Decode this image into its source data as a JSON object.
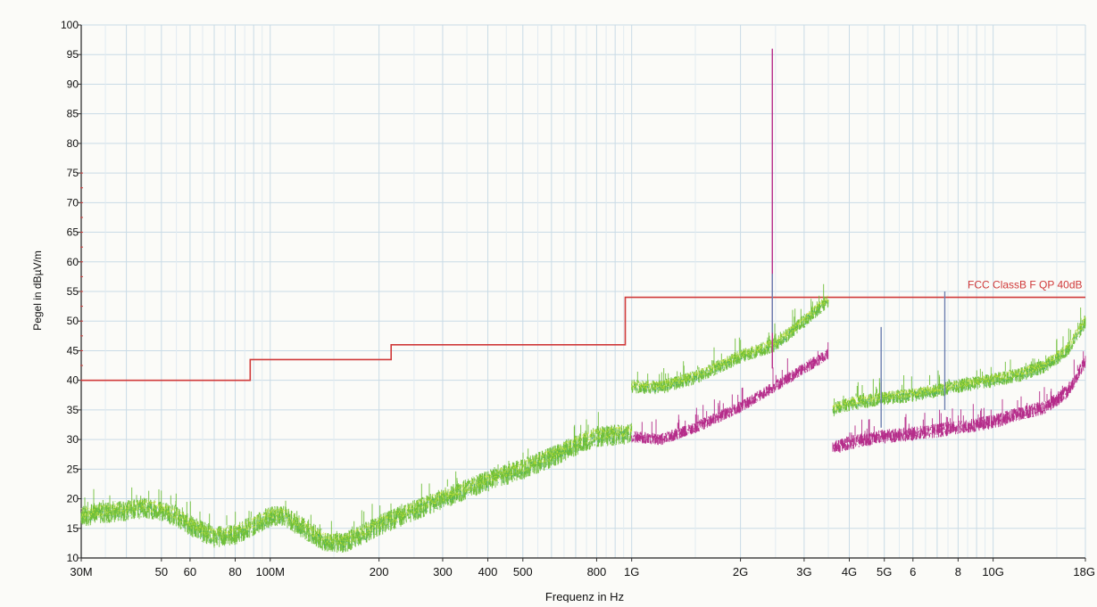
{
  "chart_data": {
    "type": "line",
    "xlabel": "Frequenz in Hz",
    "ylabel": "Pegel in dBµV/m",
    "x_scale": "log",
    "xlim_hz": [
      30000000,
      18000000000
    ],
    "ylim": [
      10,
      100
    ],
    "grid": true,
    "y_ticks": [
      10,
      15,
      20,
      25,
      30,
      35,
      40,
      45,
      50,
      55,
      60,
      65,
      70,
      75,
      80,
      85,
      90,
      95,
      100
    ],
    "x_ticks": [
      {
        "label": "30M",
        "hz": 30000000
      },
      {
        "label": "50",
        "hz": 50000000
      },
      {
        "label": "60",
        "hz": 60000000
      },
      {
        "label": "80",
        "hz": 80000000
      },
      {
        "label": "100M",
        "hz": 100000000
      },
      {
        "label": "200",
        "hz": 200000000
      },
      {
        "label": "300",
        "hz": 300000000
      },
      {
        "label": "400",
        "hz": 400000000
      },
      {
        "label": "500",
        "hz": 500000000
      },
      {
        "label": "800",
        "hz": 800000000
      },
      {
        "label": "1G",
        "hz": 1000000000
      },
      {
        "label": "2G",
        "hz": 2000000000
      },
      {
        "label": "3G",
        "hz": 3000000000
      },
      {
        "label": "4G",
        "hz": 4000000000
      },
      {
        "label": "5G",
        "hz": 5000000000
      },
      {
        "label": "6",
        "hz": 6000000000
      },
      {
        "label": "8",
        "hz": 8000000000
      },
      {
        "label": "10G",
        "hz": 10000000000
      },
      {
        "label": "18G",
        "hz": 18000000000
      }
    ],
    "series": [
      {
        "name": "FCC ClassB F QP 40dB",
        "color": "#d03a3a",
        "style": "step",
        "points": [
          [
            30000000,
            40
          ],
          [
            88000000,
            40
          ],
          [
            88000000,
            43.5
          ],
          [
            216000000,
            43.5
          ],
          [
            216000000,
            46
          ],
          [
            960000000,
            46
          ],
          [
            960000000,
            54
          ],
          [
            18000000000,
            54
          ]
        ]
      },
      {
        "color": "#6fbf3a",
        "noise": 1.8,
        "points": [
          [
            30000000,
            17
          ],
          [
            33000000,
            17.5
          ],
          [
            40000000,
            18
          ],
          [
            45000000,
            18.5
          ],
          [
            50000000,
            18
          ],
          [
            55000000,
            17
          ],
          [
            60000000,
            15.5
          ],
          [
            70000000,
            13.5
          ],
          [
            80000000,
            14
          ],
          [
            90000000,
            15.5
          ],
          [
            100000000,
            17
          ],
          [
            110000000,
            17
          ],
          [
            120000000,
            15.5
          ],
          [
            140000000,
            13
          ],
          [
            160000000,
            12.5
          ],
          [
            180000000,
            14
          ],
          [
            200000000,
            15.5
          ],
          [
            250000000,
            18
          ],
          [
            300000000,
            20
          ],
          [
            400000000,
            23
          ],
          [
            500000000,
            25
          ],
          [
            600000000,
            27
          ],
          [
            700000000,
            29
          ],
          [
            800000000,
            30.5
          ],
          [
            1000000000,
            31
          ]
        ]
      },
      {
        "color": "#6fbf3a",
        "noise": 1.2,
        "points": [
          [
            1000000000,
            39
          ],
          [
            1200000000,
            38.8
          ],
          [
            1500000000,
            40.5
          ],
          [
            2000000000,
            44
          ],
          [
            2500000000,
            46
          ],
          [
            3000000000,
            50
          ],
          [
            3500000000,
            53.5
          ]
        ]
      },
      {
        "color": "#b52c8a",
        "noise": 1.0,
        "points": [
          [
            1000000000,
            30.5
          ],
          [
            1200000000,
            30
          ],
          [
            1500000000,
            32
          ],
          [
            2000000000,
            35.5
          ],
          [
            2500000000,
            39
          ],
          [
            3000000000,
            42
          ],
          [
            3500000000,
            44.5
          ]
        ]
      },
      {
        "color": "#6fbf3a",
        "noise": 1.2,
        "points": [
          [
            3600000000,
            35
          ],
          [
            4000000000,
            36
          ],
          [
            5000000000,
            37
          ],
          [
            6000000000,
            37.5
          ],
          [
            8000000000,
            39
          ],
          [
            10000000000,
            40
          ],
          [
            12000000000,
            41
          ],
          [
            14000000000,
            42.5
          ],
          [
            16000000000,
            45
          ],
          [
            18000000000,
            50
          ]
        ]
      },
      {
        "color": "#b52c8a",
        "noise": 1.2,
        "points": [
          [
            3600000000,
            28.5
          ],
          [
            4000000000,
            29.5
          ],
          [
            5000000000,
            30.5
          ],
          [
            6000000000,
            31
          ],
          [
            8000000000,
            32
          ],
          [
            10000000000,
            33
          ],
          [
            12000000000,
            34.5
          ],
          [
            14000000000,
            35.5
          ],
          [
            16000000000,
            38
          ],
          [
            18000000000,
            43
          ]
        ]
      }
    ],
    "spikes": [
      {
        "hz": 2450000000,
        "from": 42,
        "to": 96,
        "color": "#b52c8a"
      },
      {
        "hz": 2450000000,
        "from": 48,
        "to": 58,
        "color": "#6d7fb0"
      },
      {
        "hz": 4900000000,
        "from": 32,
        "to": 49,
        "color": "#6d7fb0"
      },
      {
        "hz": 7350000000,
        "from": 35,
        "to": 55,
        "color": "#6d7fb0"
      }
    ],
    "annotations": [
      {
        "text": "FCC ClassB F QP 40dB",
        "hz": 8500000000,
        "y": 55.2,
        "color": "#d03a3a"
      }
    ]
  }
}
